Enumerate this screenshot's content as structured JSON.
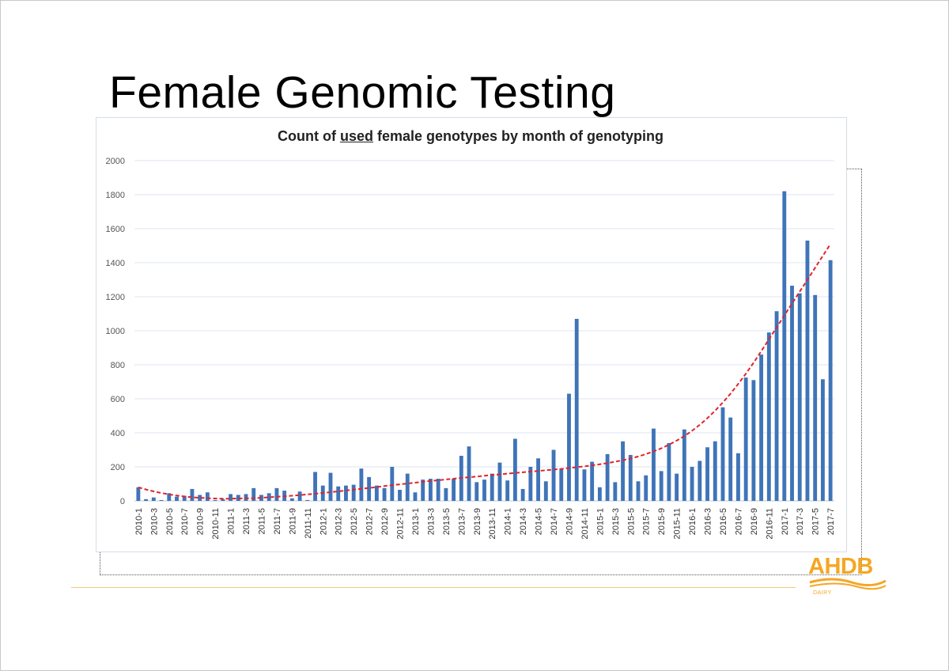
{
  "slide": {
    "title": "Female Genomic Testing"
  },
  "logo": {
    "name": "AHDB",
    "sub": "DAIRY",
    "color": "#f5a623"
  },
  "chart_data": {
    "type": "bar",
    "title_parts": [
      "Count of ",
      "used",
      " female genotypes by month of genotyping"
    ],
    "bar_color": "#3f74b8",
    "trend_color": "#e0242b",
    "ylim": [
      0,
      2000
    ],
    "yticks": [
      0,
      200,
      400,
      600,
      800,
      1000,
      1200,
      1400,
      1600,
      1800,
      2000
    ],
    "grid": true,
    "categories": [
      "2010-1",
      "2010-2",
      "2010-3",
      "2010-4",
      "2010-5",
      "2010-6",
      "2010-7",
      "2010-8",
      "2010-9",
      "2010-10",
      "2010-11",
      "2010-12",
      "2011-1",
      "2011-2",
      "2011-3",
      "2011-4",
      "2011-5",
      "2011-6",
      "2011-7",
      "2011-8",
      "2011-9",
      "2011-10",
      "2011-11",
      "2011-12",
      "2012-1",
      "2012-2",
      "2012-3",
      "2012-4",
      "2012-5",
      "2012-6",
      "2012-7",
      "2012-8",
      "2012-9",
      "2012-10",
      "2012-11",
      "2012-12",
      "2013-1",
      "2013-2",
      "2013-3",
      "2013-4",
      "2013-5",
      "2013-6",
      "2013-7",
      "2013-8",
      "2013-9",
      "2013-10",
      "2013-11",
      "2013-12",
      "2014-1",
      "2014-2",
      "2014-3",
      "2014-4",
      "2014-5",
      "2014-6",
      "2014-7",
      "2014-8",
      "2014-9",
      "2014-10",
      "2014-11",
      "2014-12",
      "2015-1",
      "2015-2",
      "2015-3",
      "2015-4",
      "2015-5",
      "2015-6",
      "2015-7",
      "2015-8",
      "2015-9",
      "2015-10",
      "2015-11",
      "2015-12",
      "2016-1",
      "2016-2",
      "2016-3",
      "2016-4",
      "2016-5",
      "2016-6",
      "2016-7",
      "2016-8",
      "2016-9",
      "2016-10",
      "2016-11",
      "2016-12",
      "2017-1",
      "2017-2",
      "2017-3",
      "2017-4",
      "2017-5",
      "2017-6",
      "2017-7"
    ],
    "tick_labels": [
      "2010-1",
      "2010-3",
      "2010-5",
      "2010-7",
      "2010-9",
      "2010-11",
      "2011-1",
      "2011-3",
      "2011-5",
      "2011-7",
      "2011-9",
      "2011-11",
      "2012-1",
      "2012-3",
      "2012-5",
      "2012-7",
      "2012-9",
      "2012-11",
      "2013-1",
      "2013-3",
      "2013-5",
      "2013-7",
      "2013-9",
      "2013-11",
      "2014-1",
      "2014-3",
      "2014-5",
      "2014-7",
      "2014-9",
      "2014-11",
      "2015-1",
      "2015-3",
      "2015-5",
      "2015-7",
      "2015-9",
      "2015-11",
      "2016-1",
      "2016-3",
      "2016-5",
      "2016-7",
      "2016-9",
      "2016-11",
      "2017-1",
      "2017-3",
      "2017-5",
      "2017-7"
    ],
    "values": [
      80,
      10,
      20,
      5,
      45,
      25,
      30,
      70,
      35,
      50,
      5,
      10,
      40,
      35,
      40,
      75,
      35,
      45,
      75,
      60,
      15,
      55,
      5,
      170,
      90,
      165,
      85,
      90,
      95,
      190,
      140,
      90,
      75,
      200,
      65,
      160,
      50,
      125,
      130,
      130,
      75,
      130,
      265,
      320,
      110,
      125,
      160,
      225,
      120,
      365,
      70,
      200,
      250,
      115,
      300,
      190,
      630,
      1070,
      185,
      230,
      80,
      275,
      110,
      350,
      270,
      115,
      150,
      425,
      175,
      340,
      160,
      420,
      200,
      235,
      315,
      350,
      550,
      490,
      280,
      725,
      710,
      860,
      990,
      1115,
      1820,
      1265,
      1220,
      1530,
      1210,
      715,
      1415
    ],
    "trend": [
      80,
      67,
      56,
      46,
      38,
      31,
      26,
      21,
      18,
      16,
      14,
      13,
      13,
      14,
      15,
      16,
      18,
      21,
      24,
      27,
      30,
      34,
      38,
      42,
      47,
      51,
      56,
      61,
      66,
      71,
      76,
      81,
      87,
      92,
      97,
      102,
      107,
      112,
      117,
      121,
      126,
      130,
      135,
      139,
      143,
      148,
      152,
      156,
      160,
      164,
      168,
      172,
      176,
      180,
      184,
      188,
      193,
      198,
      203,
      209,
      215,
      222,
      230,
      239,
      249,
      261,
      275,
      291,
      309,
      330,
      354,
      381,
      412,
      447,
      486,
      530,
      578,
      630,
      687,
      748,
      812,
      880,
      950,
      1020,
      1090,
      1160,
      1230,
      1300,
      1370,
      1440,
      1510
    ]
  }
}
